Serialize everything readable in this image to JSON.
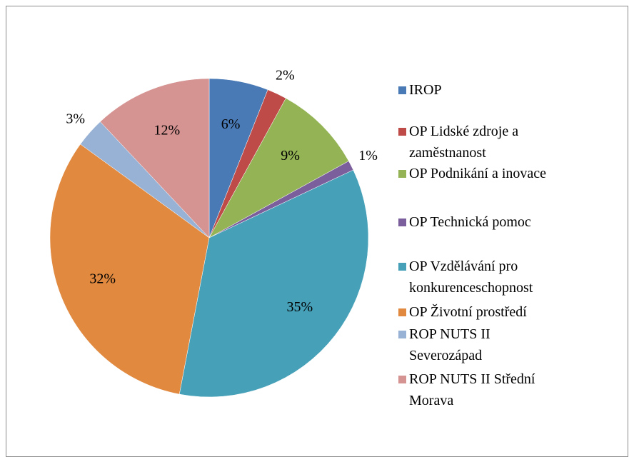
{
  "chart_data": {
    "type": "pie",
    "categories": [
      "IROP",
      "OP Lidské zdroje a zaměstnanost",
      "OP Podnikání a inovace",
      "OP Technická pomoc",
      "OP Vzdělávání pro konkurenceschopnost",
      "OP Životní prostředí",
      "ROP NUTS II Severozápad",
      "ROP NUTS II Střední Morava"
    ],
    "values": [
      6,
      2,
      9,
      1,
      35,
      32,
      3,
      12
    ],
    "value_labels": [
      "6%",
      "2%",
      "9%",
      "1%",
      "35%",
      "32%",
      "3%",
      "12%"
    ],
    "colors": [
      "#4a7ab5",
      "#be4b48",
      "#93b355",
      "#7a5f9c",
      "#45a0b8",
      "#e0893f",
      "#98b2d6",
      "#d59392"
    ],
    "legend": "right"
  }
}
